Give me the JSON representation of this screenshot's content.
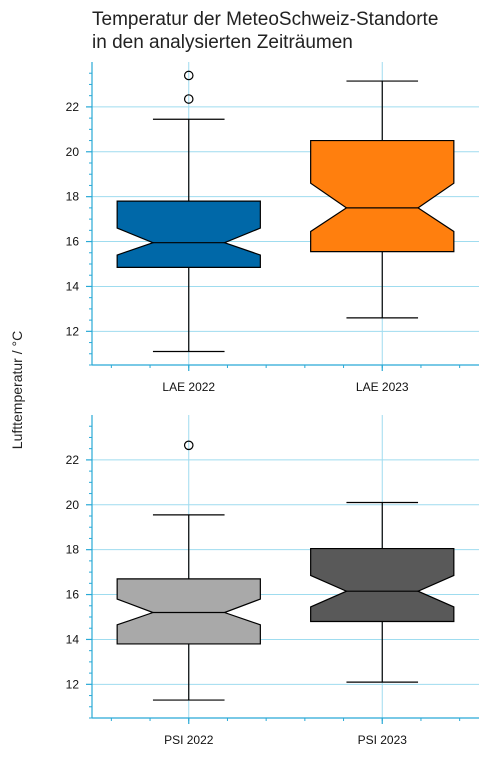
{
  "title_lines": [
    "Temperatur der MeteoSchweiz-Standorte",
    "in den analysierten Zeiträumen"
  ],
  "ylabel": "Lufttemperatur / °C",
  "colors": {
    "grid": "#9fdcef",
    "axis": "#29a9d6",
    "box_edge": "#000000"
  },
  "chart_data": [
    {
      "type": "box",
      "notched": true,
      "ylim": [
        10.5,
        24.0
      ],
      "yticks": [
        12,
        14,
        16,
        18,
        20,
        22
      ],
      "grid": true,
      "categories": [
        "LAE 2022",
        "LAE 2023"
      ],
      "boxes": [
        {
          "label": "LAE 2022",
          "color": "#0068a8",
          "whisker_low": 11.1,
          "q1": 14.85,
          "median": 15.95,
          "q3": 17.8,
          "whisker_high": 21.45,
          "notch_low": 15.4,
          "notch_high": 16.6,
          "outliers": [
            22.35,
            23.4
          ]
        },
        {
          "label": "LAE 2023",
          "color": "#ff7f0e",
          "whisker_low": 12.6,
          "q1": 15.55,
          "median": 17.5,
          "q3": 20.5,
          "whisker_high": 23.15,
          "notch_low": 16.45,
          "notch_high": 18.6,
          "outliers": []
        }
      ]
    },
    {
      "type": "box",
      "notched": true,
      "ylim": [
        10.5,
        24.0
      ],
      "yticks": [
        12,
        14,
        16,
        18,
        20,
        22
      ],
      "grid": true,
      "categories": [
        "PSI 2022",
        "PSI 2023"
      ],
      "boxes": [
        {
          "label": "PSI 2022",
          "color": "#a9a9a9",
          "whisker_low": 11.3,
          "q1": 13.8,
          "median": 15.2,
          "q3": 16.7,
          "whisker_high": 19.55,
          "notch_low": 14.65,
          "notch_high": 15.8,
          "outliers": [
            22.65
          ]
        },
        {
          "label": "PSI 2023",
          "color": "#595959",
          "whisker_low": 12.1,
          "q1": 14.8,
          "median": 16.15,
          "q3": 18.05,
          "whisker_high": 20.1,
          "notch_low": 15.45,
          "notch_high": 16.85,
          "outliers": []
        }
      ]
    }
  ]
}
